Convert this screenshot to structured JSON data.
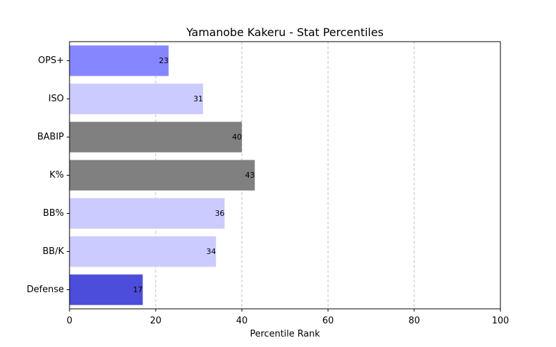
{
  "chart_data": {
    "type": "bar",
    "orientation": "horizontal",
    "title": "Yamanobe Kakeru - Stat Percentiles",
    "xlabel": "Percentile Rank",
    "ylabel": "",
    "xlim": [
      0,
      100
    ],
    "xticks": [
      0,
      20,
      40,
      60,
      80,
      100
    ],
    "grid": "x-dashed",
    "categories": [
      "OPS+",
      "ISO",
      "BABIP",
      "K%",
      "BB%",
      "BB/K",
      "Defense"
    ],
    "values": [
      23,
      31,
      40,
      43,
      36,
      34,
      17
    ],
    "colors": [
      "#8686ff",
      "#cccbff",
      "#808080",
      "#808080",
      "#cccbff",
      "#cccbff",
      "#4d4ddb"
    ]
  }
}
